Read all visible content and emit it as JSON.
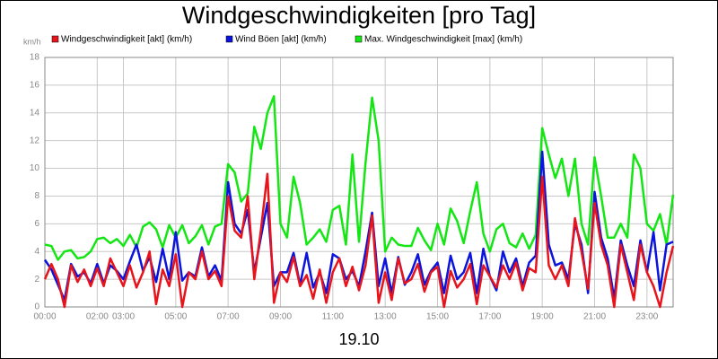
{
  "chart_data": {
    "type": "line",
    "title": "Windgeschwindigkeiten [pro Tag]",
    "y_label": "km/h",
    "x_label": "19.10",
    "x": [
      0,
      0.25,
      0.5,
      0.75,
      1,
      1.25,
      1.5,
      1.75,
      2,
      2.25,
      2.5,
      2.75,
      3,
      3.25,
      3.5,
      3.75,
      4,
      4.25,
      4.5,
      4.75,
      5,
      5.25,
      5.5,
      5.75,
      6,
      6.25,
      6.5,
      6.75,
      7,
      7.25,
      7.5,
      7.75,
      8,
      8.25,
      8.5,
      8.75,
      9,
      9.25,
      9.5,
      9.75,
      10,
      10.25,
      10.5,
      10.75,
      11,
      11.25,
      11.5,
      11.75,
      12,
      12.25,
      12.5,
      12.75,
      13,
      13.25,
      13.5,
      13.75,
      14,
      14.25,
      14.5,
      14.75,
      15,
      15.25,
      15.5,
      15.75,
      16,
      16.25,
      16.5,
      16.75,
      17,
      17.25,
      17.5,
      17.75,
      18,
      18.25,
      18.5,
      18.75,
      19,
      19.25,
      19.5,
      19.75,
      20,
      20.25,
      20.5,
      20.75,
      21,
      21.25,
      21.5,
      21.75,
      22,
      22.25,
      22.5,
      22.75,
      23,
      23.25,
      23.5,
      23.75,
      24
    ],
    "series": [
      {
        "name": "Windgeschwindigkeit [akt] (km/h)",
        "color": "#e8141b",
        "values": [
          2.0,
          3.1,
          2.0,
          0,
          3.0,
          1.8,
          2.7,
          1.5,
          2.8,
          1.5,
          3.5,
          2.5,
          1.5,
          3.0,
          1.4,
          2.5,
          4.0,
          0.2,
          2.7,
          1.5,
          3.8,
          0,
          2.5,
          2.0,
          4.0,
          2.0,
          2.6,
          1.5,
          8.0,
          5.5,
          5.0,
          8.0,
          2.0,
          5.5,
          9.6,
          0.3,
          2.5,
          1.8,
          3.6,
          1.5,
          2.3,
          0.6,
          2.7,
          0.3,
          2.5,
          3.5,
          1.5,
          2.9,
          1.2,
          3.0,
          6.6,
          0.3,
          2.5,
          0.5,
          3.5,
          1.7,
          2.0,
          3.1,
          1.1,
          2.5,
          2.9,
          0,
          2.6,
          1.4,
          2.0,
          3.1,
          0.2,
          3.0,
          2.2,
          1.4,
          3.0,
          2.0,
          3.2,
          1.2,
          2.8,
          2.5,
          9.4,
          3.0,
          2.0,
          3.0,
          1.5,
          6.4,
          4.0,
          1.3,
          7.5,
          4.5,
          3.0,
          0,
          4.5,
          2.5,
          0.5,
          4.5,
          2.5,
          1.5,
          0,
          2.5,
          4.4
        ]
      },
      {
        "name": "Wind Böen [akt] (km/h)",
        "color": "#0a14dc",
        "values": [
          3.4,
          2.7,
          1.6,
          0.5,
          3.1,
          2.2,
          2.5,
          1.7,
          3.1,
          1.7,
          3.0,
          2.6,
          2.0,
          3.3,
          4.5,
          2.6,
          3.6,
          1.8,
          4.2,
          2.0,
          5.4,
          1.9,
          2.5,
          2.2,
          4.3,
          2.2,
          3.0,
          1.9,
          9.0,
          6.0,
          5.3,
          7.0,
          2.5,
          5.0,
          7.5,
          1.5,
          2.5,
          2.5,
          3.9,
          1.6,
          3.9,
          1.4,
          2.5,
          1.0,
          3.8,
          3.5,
          2.0,
          2.6,
          1.5,
          4.0,
          6.8,
          1.5,
          3.5,
          1.0,
          3.6,
          1.6,
          2.5,
          3.8,
          1.6,
          2.6,
          3.2,
          1.0,
          3.7,
          2.0,
          2.5,
          3.9,
          1.0,
          4.2,
          2.2,
          1.2,
          4.0,
          2.5,
          3.5,
          1.5,
          3.2,
          3.7,
          11.2,
          4.5,
          3.0,
          3.2,
          2.0,
          6.0,
          4.5,
          1.0,
          8.3,
          5.0,
          3.5,
          0.6,
          4.8,
          3.0,
          1.5,
          4.8,
          2.5,
          5.4,
          1.2,
          4.5,
          4.7
        ]
      },
      {
        "name": "Max. Windgeschwindigkeit [max] (km/h)",
        "color": "#14e614",
        "values": [
          4.5,
          4.4,
          3.4,
          4.0,
          4.1,
          3.5,
          3.6,
          4.0,
          4.9,
          5.0,
          4.6,
          4.9,
          4.4,
          5.2,
          4.3,
          5.8,
          6.1,
          5.6,
          4.3,
          5.9,
          5.0,
          5.9,
          4.6,
          5.1,
          5.9,
          4.5,
          5.8,
          6.0,
          10.3,
          9.7,
          7.6,
          8.2,
          13.0,
          11.4,
          14.0,
          15.2,
          6.0,
          5.0,
          9.4,
          7.5,
          4.5,
          5.0,
          5.6,
          4.7,
          7.0,
          7.3,
          4.5,
          11.0,
          4.7,
          10.4,
          15.1,
          12.0,
          4.0,
          5.0,
          4.5,
          4.4,
          4.4,
          5.7,
          4.8,
          4.1,
          6.0,
          4.5,
          7.1,
          6.2,
          4.6,
          6.9,
          9.0,
          5.3,
          4.0,
          5.6,
          6.0,
          4.6,
          4.3,
          5.3,
          4.2,
          5.2,
          12.9,
          11.0,
          9.3,
          10.7,
          8.0,
          10.7,
          6.0,
          4.5,
          10.8,
          8.0,
          5.0,
          5.0,
          6.0,
          5.0,
          11.0,
          10.0,
          6.0,
          5.5,
          6.7,
          4.5,
          8.1
        ]
      }
    ],
    "xlim": [
      0,
      24
    ],
    "ylim": [
      0,
      18
    ],
    "xticks": [
      {
        "value": 0,
        "label": "00:00"
      },
      {
        "value": 2,
        "label": "02:00"
      },
      {
        "value": 3,
        "label": "03:00"
      },
      {
        "value": 5,
        "label": "05:00"
      },
      {
        "value": 7,
        "label": "07:00"
      },
      {
        "value": 9,
        "label": "09:00"
      },
      {
        "value": 11,
        "label": "11:00"
      },
      {
        "value": 13,
        "label": "13:00"
      },
      {
        "value": 15,
        "label": "15:00"
      },
      {
        "value": 17,
        "label": "17:00"
      },
      {
        "value": 19,
        "label": "19:00"
      },
      {
        "value": 21,
        "label": "21:00"
      },
      {
        "value": 23,
        "label": "23:00"
      }
    ],
    "yticks": [
      0,
      2,
      4,
      6,
      8,
      10,
      12,
      14,
      16,
      18
    ],
    "grid": true
  }
}
